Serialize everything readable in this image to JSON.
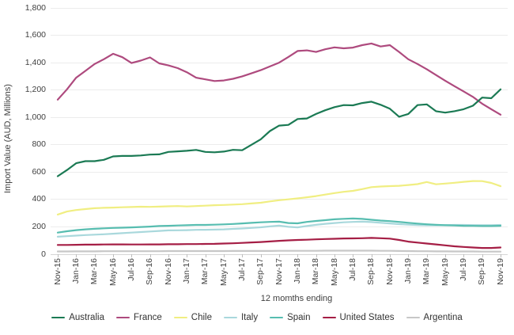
{
  "chart_data": {
    "type": "line",
    "title": "",
    "ylabel": "Import Value (AUD, Millions)",
    "xlabel": "12 momths ending",
    "ylim": [
      0,
      1800
    ],
    "ytick_step": 200,
    "ytick_labels": [
      "0",
      "200",
      "400",
      "600",
      "800",
      "1,000",
      "1,200",
      "1,400",
      "1,600",
      "1,800"
    ],
    "grid": "horizontal",
    "legend_position": "bottom",
    "x": [
      "Nov-15",
      "Dec-15",
      "Jan-16",
      "Feb-16",
      "Mar-16",
      "Apr-16",
      "May-16",
      "Jun-16",
      "Jul-16",
      "Aug-16",
      "Sep-16",
      "Oct-16",
      "Nov-16",
      "Dec-16",
      "Jan-17",
      "Feb-17",
      "Mar-17",
      "Apr-17",
      "May-17",
      "Jun-17",
      "Jul-17",
      "Aug-17",
      "Sep-17",
      "Oct-17",
      "Nov-17",
      "Dec-17",
      "Jan-18",
      "Feb-18",
      "Mar-18",
      "Apr-18",
      "May-18",
      "Jun-18",
      "Jul-18",
      "Aug-18",
      "Sep-18",
      "Oct-18",
      "Nov-18",
      "Dec-18",
      "Jan-19",
      "Feb-19",
      "Mar-19",
      "Apr-19",
      "May-19",
      "Jun-19",
      "Jul-19",
      "Aug-19",
      "Sep-19",
      "Oct-19",
      "Nov-19"
    ],
    "x_tick_labels": [
      "Nov-15",
      "Jan-16",
      "Mar-16",
      "May-16",
      "Jul-16",
      "Sep-16",
      "Nov-16",
      "Jan-17",
      "Mar-17",
      "May-17",
      "Jul-17",
      "Sep-17",
      "Nov-17",
      "Jan-18",
      "Mar-18",
      "May-18",
      "Jul-18",
      "Sep-18",
      "Nov-18",
      "Jan-19",
      "Mar-19",
      "May-19",
      "Jul-19",
      "Sep-19",
      "Nov-19"
    ],
    "series": [
      {
        "name": "Australia",
        "color": "#1b7a54",
        "values": [
          570,
          615,
          665,
          680,
          680,
          690,
          715,
          718,
          718,
          722,
          728,
          730,
          748,
          752,
          756,
          762,
          748,
          745,
          750,
          763,
          760,
          800,
          840,
          900,
          940,
          945,
          988,
          992,
          1025,
          1052,
          1075,
          1090,
          1088,
          1105,
          1115,
          1092,
          1063,
          1005,
          1025,
          1090,
          1095,
          1045,
          1035,
          1045,
          1060,
          1085,
          1145,
          1140,
          1205
        ]
      },
      {
        "name": "France",
        "color": "#ae4a7e",
        "values": [
          1130,
          1205,
          1290,
          1340,
          1390,
          1425,
          1465,
          1440,
          1397,
          1415,
          1438,
          1395,
          1380,
          1360,
          1330,
          1290,
          1278,
          1266,
          1270,
          1282,
          1300,
          1322,
          1345,
          1372,
          1400,
          1442,
          1485,
          1490,
          1478,
          1498,
          1512,
          1505,
          1510,
          1528,
          1540,
          1518,
          1528,
          1478,
          1425,
          1390,
          1352,
          1310,
          1268,
          1228,
          1190,
          1150,
          1100,
          1060,
          1020
        ]
      },
      {
        "name": "Chile",
        "color": "#f0ee82",
        "values": [
          290,
          312,
          323,
          330,
          336,
          339,
          341,
          343,
          345,
          347,
          346,
          348,
          350,
          352,
          349,
          352,
          355,
          358,
          360,
          363,
          366,
          371,
          376,
          386,
          395,
          401,
          408,
          416,
          425,
          436,
          447,
          456,
          463,
          476,
          490,
          495,
          498,
          500,
          506,
          512,
          528,
          511,
          516,
          522,
          529,
          535,
          534,
          521,
          497
        ]
      },
      {
        "name": "Italy",
        "color": "#a9d8dc",
        "values": [
          128,
          132,
          136,
          140,
          143,
          146,
          150,
          154,
          158,
          162,
          166,
          170,
          174,
          175,
          176,
          178,
          179,
          180,
          182,
          185,
          188,
          192,
          197,
          203,
          209,
          200,
          196,
          206,
          215,
          222,
          228,
          233,
          236,
          238,
          235,
          230,
          225,
          220,
          216,
          213,
          212,
          212,
          213,
          214,
          214,
          213,
          212,
          212,
          214
        ]
      },
      {
        "name": "Spain",
        "color": "#57bdb0",
        "values": [
          158,
          168,
          176,
          182,
          186,
          189,
          192,
          194,
          196,
          199,
          202,
          206,
          208,
          210,
          212,
          214,
          214,
          216,
          218,
          221,
          225,
          229,
          233,
          236,
          238,
          228,
          226,
          236,
          243,
          249,
          255,
          259,
          261,
          258,
          252,
          246,
          242,
          236,
          230,
          224,
          219,
          215,
          212,
          210,
          208,
          207,
          206,
          206,
          208
        ]
      },
      {
        "name": "United States",
        "color": "#a51e45",
        "values": [
          68,
          68,
          69,
          70,
          70,
          71,
          72,
          72,
          71,
          71,
          72,
          72,
          73,
          73,
          74,
          74,
          75,
          76,
          78,
          80,
          83,
          86,
          89,
          93,
          98,
          101,
          104,
          106,
          109,
          111,
          113,
          115,
          116,
          117,
          119,
          117,
          114,
          104,
          92,
          85,
          78,
          72,
          65,
          58,
          53,
          49,
          46,
          46,
          49
        ]
      },
      {
        "name": "Argentina",
        "color": "#c7c7c7",
        "values": [
          20,
          20,
          21,
          21,
          21,
          22,
          22,
          22,
          22,
          22,
          22,
          22,
          23,
          23,
          23,
          23,
          23,
          23,
          23,
          24,
          24,
          24,
          24,
          24,
          25,
          25,
          25,
          25,
          25,
          26,
          26,
          26,
          26,
          26,
          26,
          25,
          25,
          24,
          23,
          22,
          22,
          21,
          21,
          20,
          20,
          20,
          19,
          19,
          19
        ]
      }
    ]
  }
}
